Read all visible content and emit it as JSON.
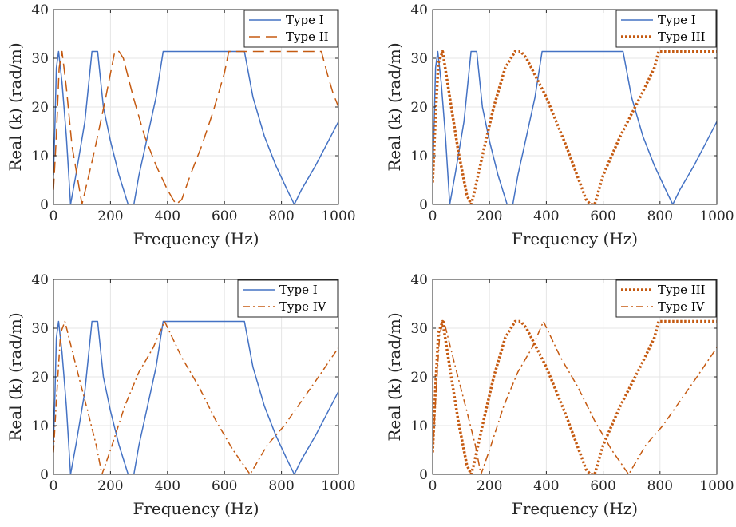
{
  "styles": {
    "Type I": {
      "color": "#4472c4",
      "dash": "solid"
    },
    "Type II": {
      "color": "#c55a11",
      "dash": "dashed"
    },
    "Type III": {
      "color": "#c55a11",
      "dash": "dotted"
    },
    "Type IV": {
      "color": "#c55a11",
      "dash": "dashdot"
    }
  },
  "chart_data": [
    {
      "type": "line",
      "xlabel": "Frequency (Hz)",
      "ylabel": "Real (k) (rad/m)",
      "xlim": [
        0,
        1000
      ],
      "ylim": [
        0,
        40
      ],
      "xticks": [
        0,
        200,
        400,
        600,
        800,
        1000
      ],
      "yticks": [
        0,
        10,
        20,
        30,
        40
      ],
      "grid": true,
      "legend": "top-right",
      "series": [
        {
          "name": "Type I",
          "x": [
            0,
            5,
            10,
            18,
            30,
            45,
            60,
            80,
            110,
            135,
            155,
            175,
            200,
            230,
            262,
            282,
            300,
            330,
            360,
            385,
            670,
            700,
            740,
            780,
            820,
            845,
            870,
            920,
            960,
            1000
          ],
          "y": [
            6,
            16,
            28,
            31.4,
            25,
            14,
            0,
            6.5,
            17,
            31.4,
            31.4,
            20,
            13,
            6,
            0,
            0,
            6,
            14,
            22,
            31.4,
            31.4,
            22,
            14,
            8,
            3,
            0,
            3,
            8,
            12.5,
            17
          ]
        },
        {
          "name": "Type II",
          "x": [
            0,
            10,
            20,
            30,
            45,
            65,
            100,
            140,
            180,
            215,
            230,
            245,
            280,
            320,
            360,
            400,
            430,
            450,
            480,
            520,
            560,
            600,
            615,
            940,
            960,
            980,
            1000
          ],
          "y": [
            3,
            14,
            28,
            31.4,
            24,
            12,
            0,
            10,
            21,
            31.4,
            31.4,
            30,
            22,
            14,
            8,
            3,
            0,
            1,
            6,
            12,
            19,
            27,
            31.4,
            31.4,
            27,
            23,
            20
          ]
        },
        {
          "name": "Type III",
          "x": [
            0,
            10,
            20,
            35,
            60,
            90,
            120,
            135,
            145,
            175,
            215,
            255,
            290,
            310,
            330,
            400,
            470,
            540,
            555,
            570,
            600,
            660,
            730,
            780,
            795,
            1000
          ],
          "y": [
            4.5,
            18,
            29,
            31.4,
            22,
            11,
            2,
            0,
            2,
            10,
            20,
            28,
            31.4,
            31.4,
            30,
            22,
            12,
            1,
            0,
            0,
            6,
            14,
            22,
            28,
            31.4,
            31.4
          ]
        },
        {
          "name": "Type IV",
          "x": [
            0,
            10,
            25,
            40,
            80,
            120,
            150,
            170,
            200,
            250,
            300,
            350,
            390,
            450,
            510,
            570,
            630,
            690,
            750,
            810,
            870,
            930,
            1000
          ],
          "y": [
            4.5,
            15,
            29,
            31.4,
            22,
            13,
            6,
            0,
            5,
            14,
            21,
            26,
            31.4,
            24,
            18,
            11,
            5,
            0,
            6,
            10,
            15,
            20,
            26
          ]
        }
      ]
    }
  ],
  "panels": [
    {
      "series": [
        "Type I",
        "Type II"
      ]
    },
    {
      "series": [
        "Type I",
        "Type III"
      ]
    },
    {
      "series": [
        "Type I",
        "Type IV"
      ]
    },
    {
      "series": [
        "Type III",
        "Type IV"
      ]
    }
  ]
}
